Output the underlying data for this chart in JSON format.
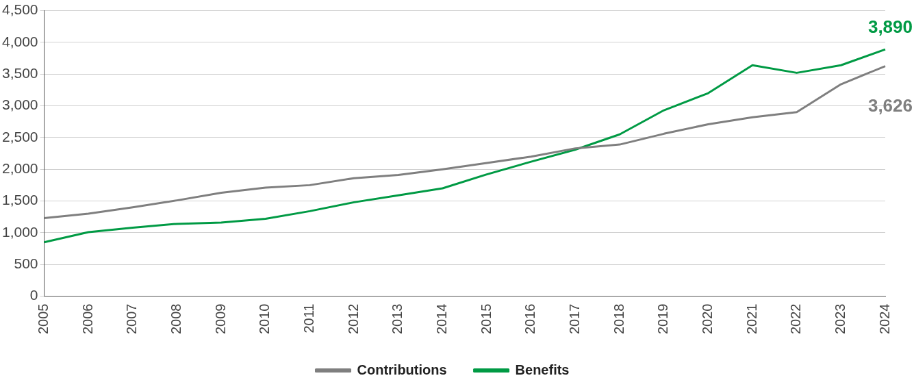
{
  "chart_data": {
    "type": "line",
    "categories": [
      "2005",
      "2006",
      "2007",
      "2008",
      "2009",
      "2010",
      "2011",
      "2012",
      "2013",
      "2014",
      "2015",
      "2016",
      "2017",
      "2018",
      "2019",
      "2020",
      "2021",
      "2022",
      "2023",
      "2024"
    ],
    "series": [
      {
        "name": "Contributions",
        "color": "#7f7f7f",
        "values": [
          1230,
          1300,
          1400,
          1510,
          1630,
          1710,
          1750,
          1860,
          1910,
          2000,
          2100,
          2200,
          2330,
          2390,
          2560,
          2710,
          2820,
          2900,
          3340,
          3626
        ],
        "value_labels": [
          null,
          null,
          null,
          null,
          null,
          null,
          null,
          null,
          null,
          null,
          null,
          null,
          null,
          null,
          null,
          null,
          null,
          null,
          null,
          "3,626"
        ]
      },
      {
        "name": "Benefits",
        "color": "#009a44",
        "values": [
          850,
          1010,
          1080,
          1140,
          1160,
          1220,
          1340,
          1480,
          1590,
          1700,
          1920,
          2120,
          2310,
          2550,
          2930,
          3200,
          3640,
          3520,
          3640,
          3890
        ],
        "value_labels": [
          null,
          null,
          null,
          null,
          null,
          null,
          null,
          null,
          null,
          null,
          null,
          null,
          null,
          null,
          null,
          null,
          null,
          null,
          null,
          "3,890"
        ]
      }
    ],
    "ylim": [
      0,
      4500
    ],
    "yticks": [
      {
        "value": 0,
        "label": "0"
      },
      {
        "value": 500,
        "label": "500"
      },
      {
        "value": 1000,
        "label": "1,000"
      },
      {
        "value": 1500,
        "label": "1,500"
      },
      {
        "value": 2000,
        "label": "2,000"
      },
      {
        "value": 2500,
        "label": "2,500"
      },
      {
        "value": 3000,
        "label": "3,000"
      },
      {
        "value": 3500,
        "label": "3,500"
      },
      {
        "value": 4000,
        "label": "4,000"
      },
      {
        "value": 4500,
        "label": "4,500"
      }
    ],
    "grid": "y",
    "legend": "bottom",
    "marker": "none",
    "line_style": "solid"
  }
}
